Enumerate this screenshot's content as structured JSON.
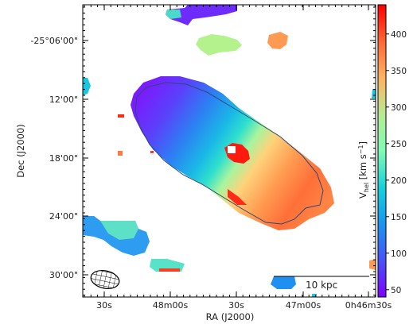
{
  "chart_data": {
    "type": "heatmap",
    "title": "",
    "xlabel": "RA (J2000)",
    "ylabel": "Dec (J2000)",
    "x_ticks": [
      "30s",
      "48m00s",
      "30s",
      "47m00s",
      "0h46m30s"
    ],
    "y_ticks": [
      "-25°06'00\"",
      "12'00\"",
      "18'00\"",
      "24'00\"",
      "30'00\""
    ],
    "colorbar": {
      "label_main": "V",
      "label_sub": "hel",
      "label_unit": " [km s",
      "label_exp": "−1",
      "label_close": "]",
      "ticks": [
        "50",
        "100",
        "150",
        "200",
        "250",
        "300",
        "350",
        "400"
      ],
      "range": [
        40,
        440
      ],
      "tick_values": [
        50,
        100,
        150,
        200,
        250,
        300,
        350,
        400
      ],
      "colormap": "rainbow"
    },
    "scale_bar_label": "10 kpc",
    "beam": "hatched-ellipse",
    "grid": false
  }
}
